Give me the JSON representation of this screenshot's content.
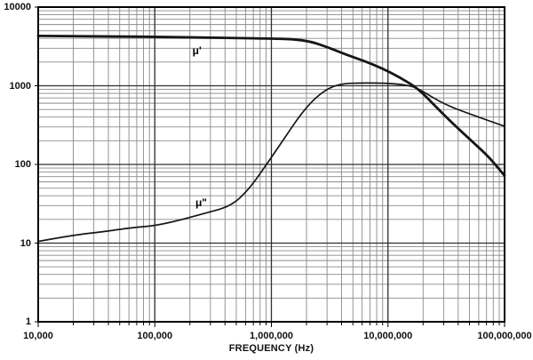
{
  "chart_data": {
    "type": "line",
    "title": "",
    "xlabel": "FREQUENCY (Hz)",
    "ylabel": "",
    "x_scale": "log",
    "y_scale": "log",
    "xlim": [
      10000,
      100000000
    ],
    "ylim": [
      1,
      10000
    ],
    "grid": {
      "major": true,
      "minor": true,
      "minor_multiples": [
        2,
        3,
        4,
        5,
        6,
        7,
        8,
        9
      ]
    },
    "legend_position": "none",
    "x_ticks": [
      {
        "value": 10000,
        "label": "10,000"
      },
      {
        "value": 100000,
        "label": "100,000"
      },
      {
        "value": 1000000,
        "label": "1,000,000"
      },
      {
        "value": 10000000,
        "label": "10,000,000"
      },
      {
        "value": 100000000,
        "label": "100,000,000"
      }
    ],
    "y_ticks": [
      {
        "value": 10000,
        "label": "10000"
      },
      {
        "value": 1000,
        "label": "1000"
      },
      {
        "value": 100,
        "label": "100"
      },
      {
        "value": 10,
        "label": "10"
      },
      {
        "value": 1,
        "label": "1"
      }
    ],
    "series": [
      {
        "name": "μ'",
        "line_weight": "thick",
        "points": [
          [
            10000,
            4300
          ],
          [
            40000,
            4250
          ],
          [
            160000,
            4150
          ],
          [
            500000,
            4050
          ],
          [
            1000000,
            3980
          ],
          [
            1500000,
            3930
          ],
          [
            2200000,
            3650
          ],
          [
            3100000,
            3050
          ],
          [
            4400000,
            2480
          ],
          [
            6300000,
            2060
          ],
          [
            8900000,
            1670
          ],
          [
            12600000,
            1280
          ],
          [
            18000000,
            930
          ],
          [
            25500000,
            550
          ],
          [
            36000000,
            330
          ],
          [
            52000000,
            200
          ],
          [
            74000000,
            123
          ],
          [
            100000000,
            72
          ]
        ]
      },
      {
        "name": "μ\"",
        "line_weight": "thin",
        "points": [
          [
            10000,
            10.5
          ],
          [
            19000,
            12.5
          ],
          [
            39000,
            14.2
          ],
          [
            65000,
            15.8
          ],
          [
            100000,
            16.6
          ],
          [
            160000,
            19.4
          ],
          [
            270000,
            24
          ],
          [
            450000,
            29.5
          ],
          [
            640000,
            48
          ],
          [
            910000,
            100
          ],
          [
            1300000,
            218
          ],
          [
            1850000,
            470
          ],
          [
            2600000,
            800
          ],
          [
            3700000,
            1060
          ],
          [
            6300000,
            1090
          ],
          [
            10600000,
            1075
          ],
          [
            15000000,
            1010
          ],
          [
            18000000,
            930
          ],
          [
            30000000,
            585
          ],
          [
            52000000,
            430
          ],
          [
            100000000,
            305
          ]
        ]
      }
    ],
    "annotations": [
      {
        "text": "μ'",
        "x": 230000,
        "y": 2800
      },
      {
        "text": "μ\"",
        "x": 250000,
        "y": 33
      }
    ]
  },
  "colors": {
    "background": "#ffffff",
    "curve": "#161616",
    "grid_minor": "#8a8a8a",
    "grid_major": "#2e2e2e",
    "border": "#000000",
    "text": "#111111"
  }
}
